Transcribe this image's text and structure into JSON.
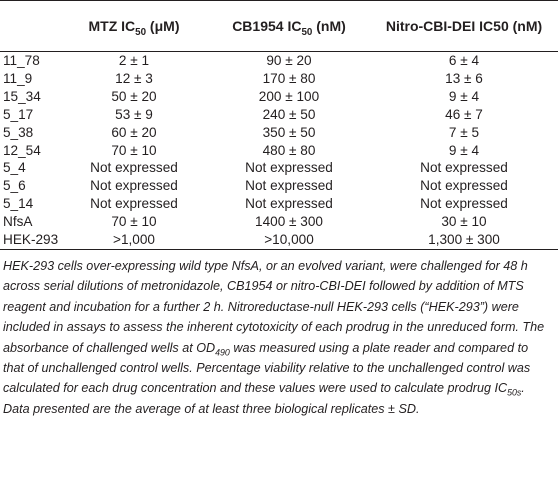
{
  "table": {
    "headers": {
      "col0": "",
      "col1_main": "MTZ IC",
      "col1_sub": "50",
      "col1_unit": " (μM)",
      "col2_main": "CB1954 IC",
      "col2_sub": "50",
      "col2_unit": " (nM)",
      "col3": "Nitro-CBI-DEI IC50 (nM)"
    },
    "rows": [
      {
        "id": "11_78",
        "mtz": "2 ± 1",
        "cb1954": "90 ± 20",
        "cbi": "6 ± 4"
      },
      {
        "id": "11_9",
        "mtz": "12 ± 3",
        "cb1954": "170 ± 80",
        "cbi": "13 ± 6"
      },
      {
        "id": "15_34",
        "mtz": "50 ± 20",
        "cb1954": "200 ± 100",
        "cbi": "9 ± 4"
      },
      {
        "id": "5_17",
        "mtz": "53 ± 9",
        "cb1954": "240 ± 50",
        "cbi": "46 ± 7"
      },
      {
        "id": "5_38",
        "mtz": "60 ± 20",
        "cb1954": "350 ± 50",
        "cbi": "7 ± 5"
      },
      {
        "id": "12_54",
        "mtz": "70 ± 10",
        "cb1954": "480 ± 80",
        "cbi": "9 ± 4"
      },
      {
        "id": "5_4",
        "mtz": "Not expressed",
        "cb1954": "Not expressed",
        "cbi": "Not expressed"
      },
      {
        "id": "5_6",
        "mtz": "Not expressed",
        "cb1954": "Not expressed",
        "cbi": "Not expressed"
      },
      {
        "id": "5_14",
        "mtz": "Not expressed",
        "cb1954": "Not expressed",
        "cbi": "Not expressed"
      },
      {
        "id": "NfsA",
        "mtz": "70 ± 10",
        "cb1954": "1400 ± 300",
        "cbi": "30 ± 10"
      },
      {
        "id": "HEK-293",
        "mtz": ">1,000",
        "cb1954": ">10,000",
        "cbi": "1,300 ± 300"
      }
    ]
  },
  "footnote": {
    "part1": "HEK-293 cells over-expressing wild type NfsA, or an evolved variant, were challenged for 48 h across serial dilutions of metronidazole, CB1954 or nitro-CBI-DEI followed by addition of MTS reagent and incubation for a further 2 h. Nitroreductase-null HEK-293 cells (“HEK-293”) were included in assays to assess the inherent cytotoxicity of each prodrug in the unreduced form. The absorbance of challenged wells at OD",
    "od_sub": "490",
    "part2": " was measured using a plate reader and compared to that of unchallenged control wells. Percentage viability relative to the unchallenged control was calculated for each drug concentration and these values were used to calculate prodrug IC",
    "ic_sub": "50s",
    "part3": ". Data presented are the average of at least three biological replicates ± SD."
  }
}
